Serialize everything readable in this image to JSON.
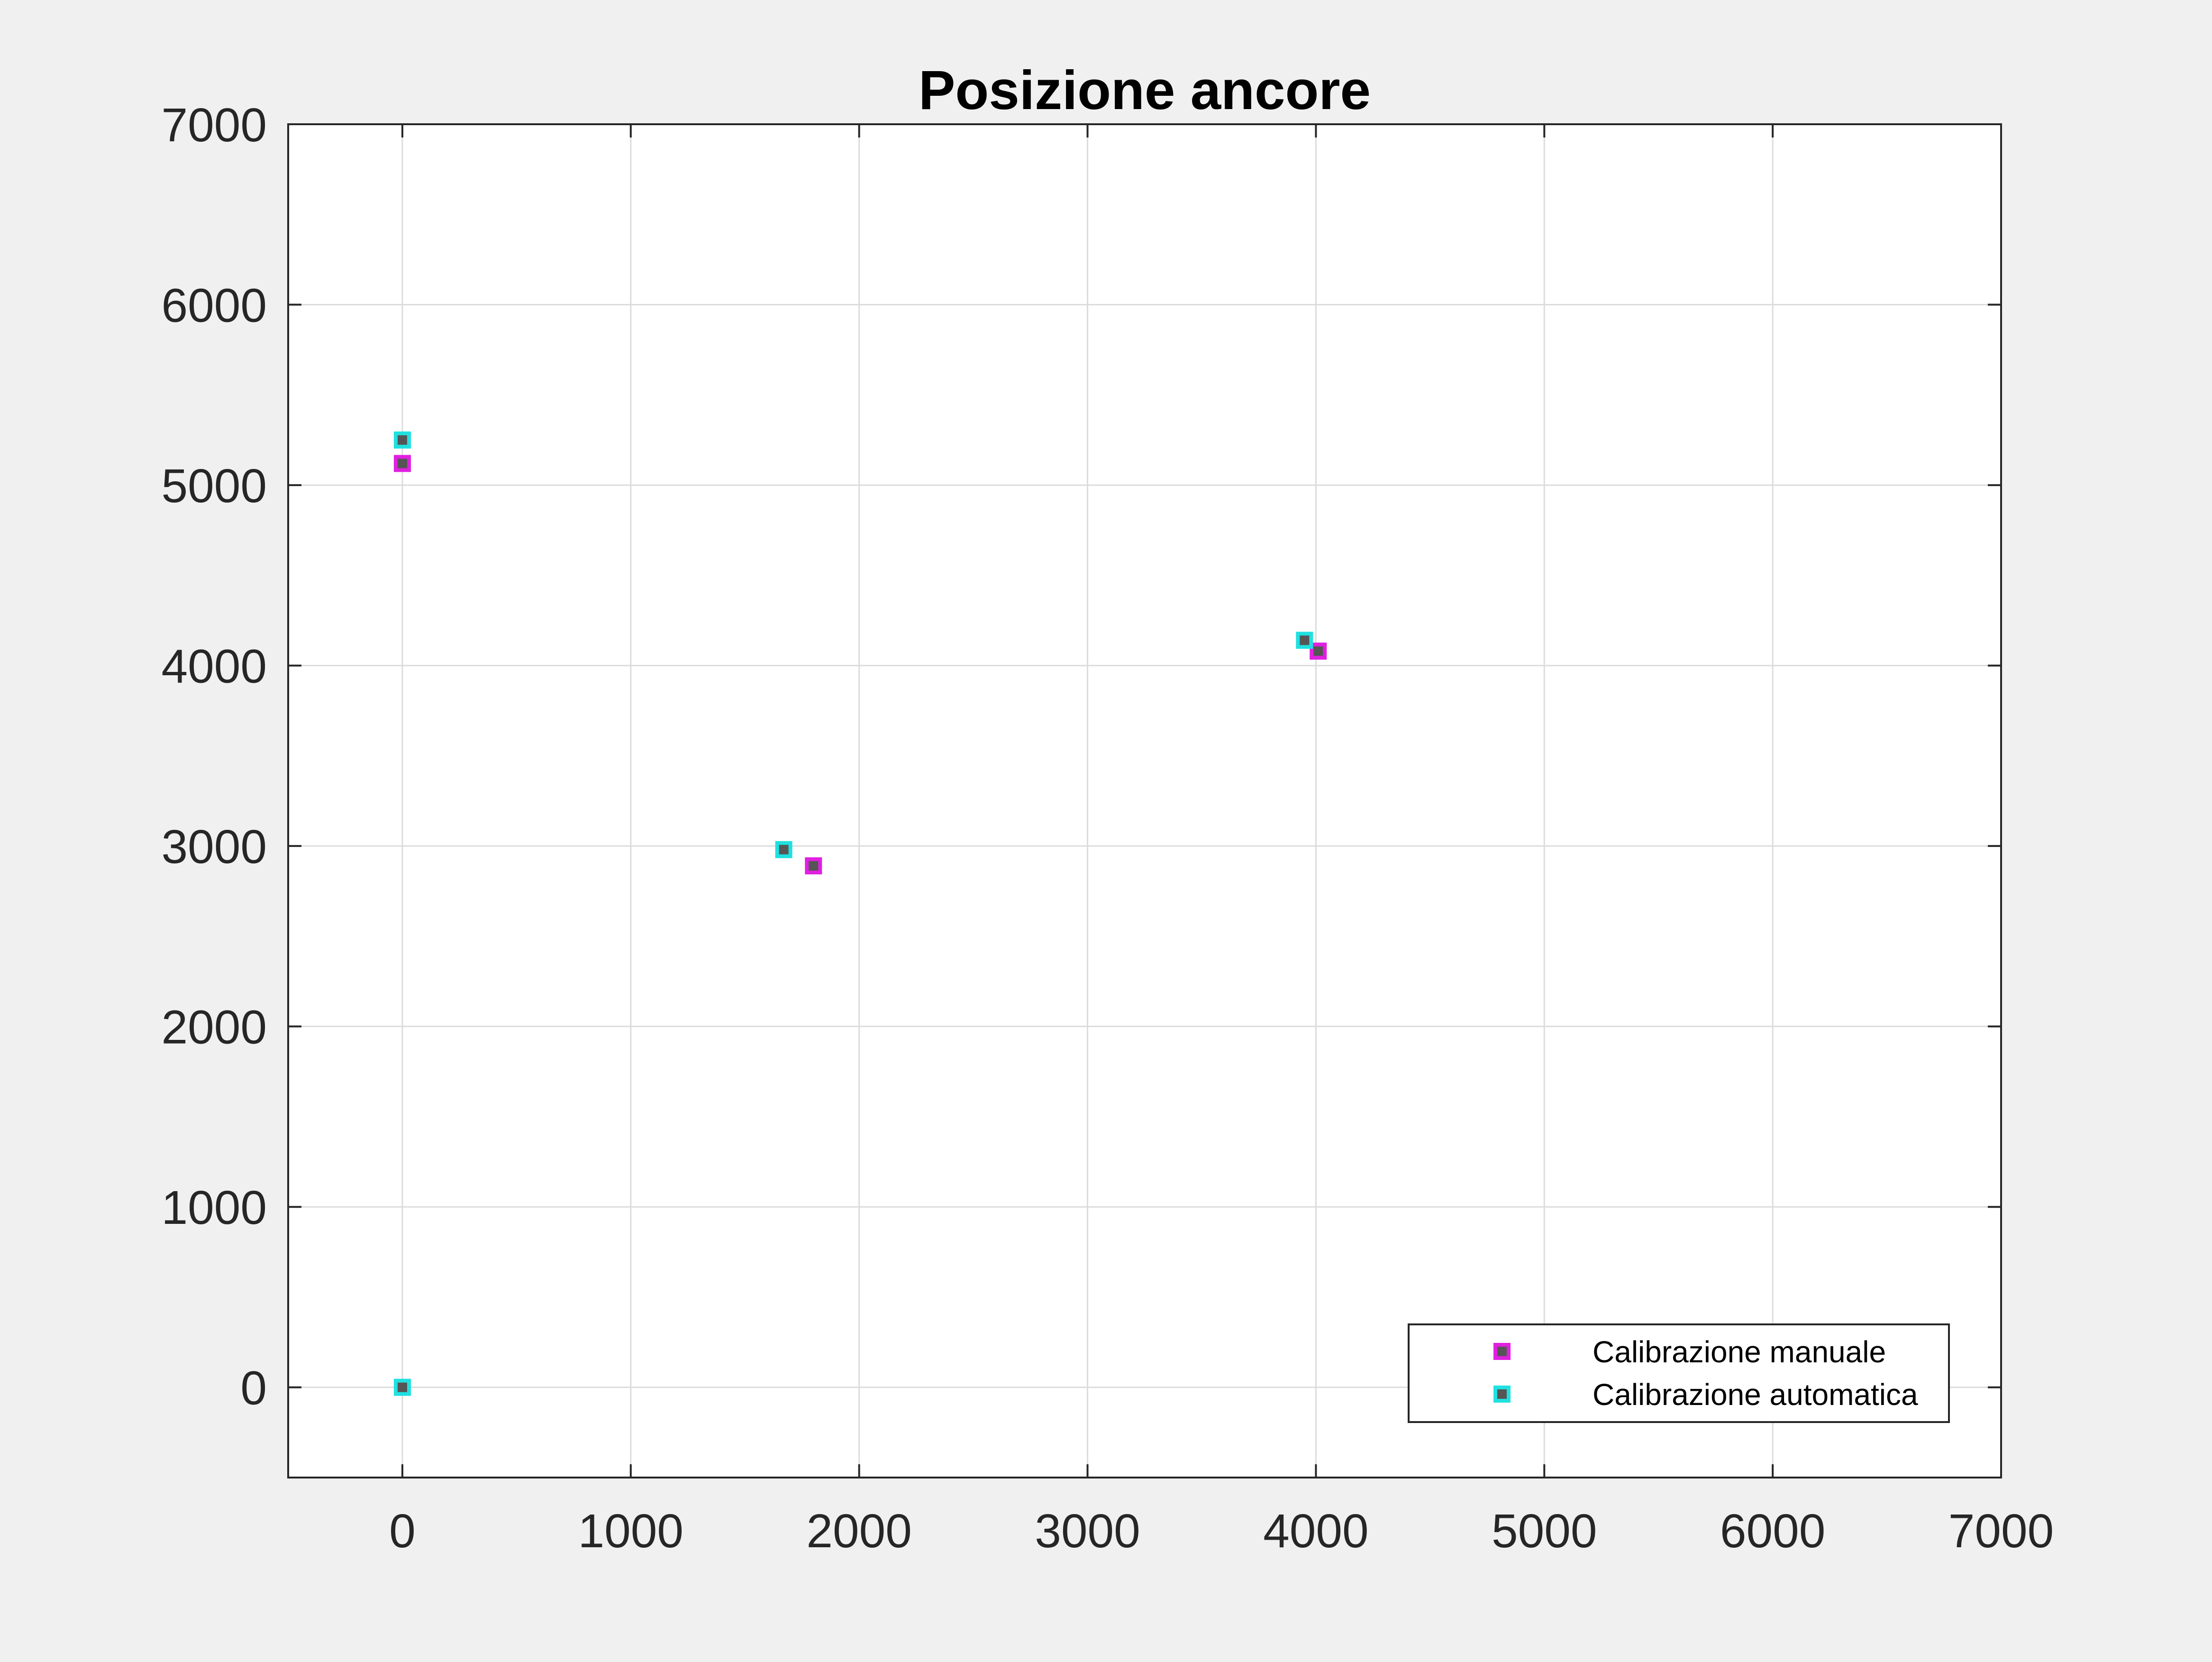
{
  "chart_data": {
    "type": "scatter",
    "title": "Posizione ancore",
    "xlabel": "",
    "ylabel": "",
    "xlim": [
      -500,
      7000
    ],
    "ylim": [
      -500,
      7000
    ],
    "xticks": [
      0,
      1000,
      2000,
      3000,
      4000,
      5000,
      6000,
      7000
    ],
    "yticks": [
      0,
      1000,
      2000,
      3000,
      4000,
      5000,
      6000,
      7000
    ],
    "xtick_labels": [
      "0",
      "1000",
      "2000",
      "3000",
      "4000",
      "5000",
      "6000",
      "7000"
    ],
    "ytick_labels": [
      "0",
      "1000",
      "2000",
      "3000",
      "4000",
      "5000",
      "6000",
      "7000"
    ],
    "grid": true,
    "legend_position": "bottom-right",
    "marker": "square",
    "series": [
      {
        "name": "Calibrazione manuale",
        "color": "#e020e0",
        "points": [
          {
            "x": 0,
            "y": 5120
          },
          {
            "x": 1800,
            "y": 2890
          },
          {
            "x": 4010,
            "y": 4080
          }
        ]
      },
      {
        "name": "Calibrazione automatica",
        "color": "#20e0e0",
        "points": [
          {
            "x": 0,
            "y": 5250
          },
          {
            "x": 1670,
            "y": 2980
          },
          {
            "x": 3950,
            "y": 4140
          },
          {
            "x": 0,
            "y": 0
          }
        ]
      }
    ]
  }
}
